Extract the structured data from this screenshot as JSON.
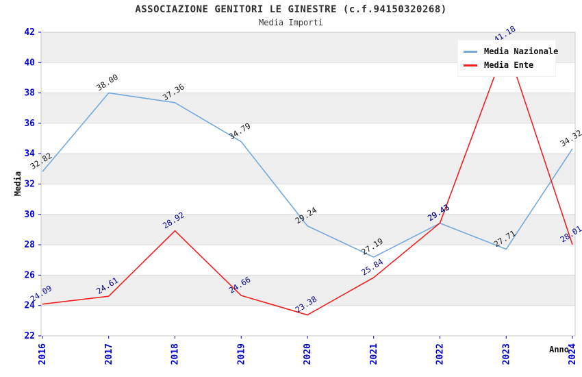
{
  "header": {
    "title": "ASSOCIAZIONE GENITORI LE GINESTRE (c.f.94150320268)",
    "subtitle": "Media Importi"
  },
  "chart_data": {
    "type": "line",
    "x": [
      2016,
      2017,
      2018,
      2019,
      2020,
      2021,
      2022,
      2023,
      2024
    ],
    "series": [
      {
        "name": "Media Nazionale",
        "color": "#74a9de",
        "label_color": "#1a1a1a",
        "values": [
          32.82,
          38.0,
          37.36,
          34.79,
          29.24,
          27.19,
          29.42,
          27.71,
          34.32
        ]
      },
      {
        "name": "Media Ente",
        "color": "#ee2020",
        "label_color": "#00008b",
        "values": [
          24.09,
          24.61,
          28.92,
          24.66,
          23.38,
          25.84,
          29.43,
          41.18,
          28.01
        ]
      }
    ],
    "xlabel": "Anno",
    "ylabel": "Media",
    "ylim": [
      22,
      42
    ],
    "ytick_step": 2,
    "legend_position": "top-right",
    "grid": "horizontal-bands-alternating",
    "styles": {
      "tick_label_color": "#0000cd",
      "axis_title_color": "#111111",
      "band_color": "#efefef",
      "gridline_color": "#dcdcdc",
      "border_color": "#c8c8c8",
      "tick_mark_color": "#0000cd"
    }
  }
}
